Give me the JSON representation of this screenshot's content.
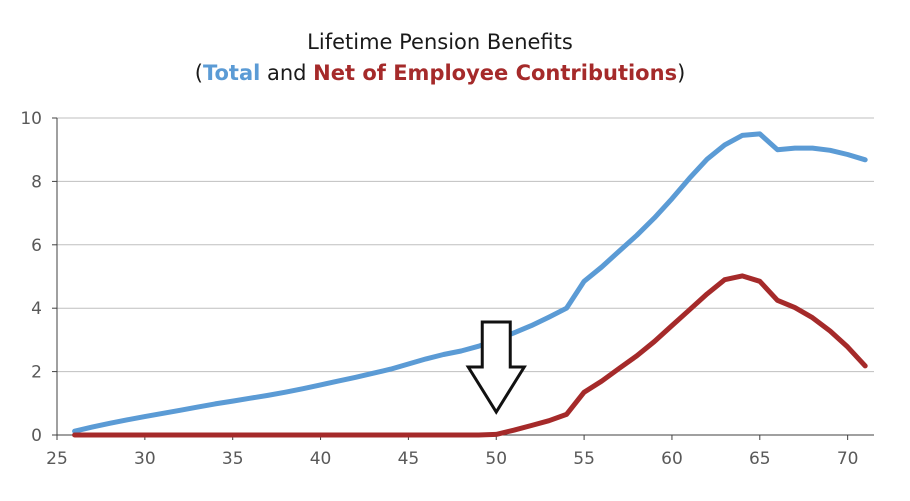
{
  "chart_data": {
    "type": "line",
    "title": "Lifetime Pension Benefits",
    "subtitle": {
      "open": "(",
      "part1": "Total",
      "middle": " and ",
      "part2": "Net of Employee Contributions",
      "close": ")"
    },
    "xlabel": "",
    "ylabel": "",
    "xlim": [
      25,
      71.5
    ],
    "ylim": [
      0,
      10
    ],
    "xticks": [
      25,
      30,
      35,
      40,
      45,
      50,
      55,
      60,
      65,
      70
    ],
    "yticks": [
      0,
      2,
      4,
      6,
      8,
      10
    ],
    "grid": "horizontal",
    "legend": "none",
    "annotation": {
      "type": "arrow",
      "points_to_x": 50,
      "description": "down-arrow-outline"
    },
    "series": [
      {
        "color": "#5B9BD5",
        "x": [
          26,
          27,
          28,
          29,
          30,
          31,
          32,
          33,
          34,
          35,
          36,
          37,
          38,
          39,
          40,
          41,
          42,
          43,
          44,
          45,
          46,
          47,
          48,
          49,
          50,
          51,
          52,
          53,
          54,
          55,
          56,
          57,
          58,
          59,
          60,
          61,
          62,
          63,
          64,
          65,
          66,
          67,
          68,
          69,
          70,
          71
        ],
        "values": [
          0.12,
          0.25,
          0.37,
          0.48,
          0.58,
          0.68,
          0.78,
          0.88,
          0.98,
          1.07,
          1.16,
          1.25,
          1.35,
          1.46,
          1.58,
          1.7,
          1.82,
          1.95,
          2.08,
          2.24,
          2.4,
          2.54,
          2.65,
          2.8,
          3.0,
          3.22,
          3.45,
          3.72,
          4.0,
          4.85,
          5.3,
          5.8,
          6.3,
          6.85,
          7.45,
          8.1,
          8.7,
          9.15,
          9.45,
          9.5,
          9.0,
          9.05,
          9.05,
          8.98,
          8.85,
          8.68
        ]
      },
      {
        "color": "#A52A2A",
        "x": [
          26,
          27,
          28,
          29,
          30,
          31,
          32,
          33,
          34,
          35,
          36,
          37,
          38,
          39,
          40,
          41,
          42,
          43,
          44,
          45,
          46,
          47,
          48,
          49,
          50,
          51,
          52,
          53,
          54,
          55,
          56,
          57,
          58,
          59,
          60,
          61,
          62,
          63,
          64,
          65,
          66,
          67,
          68,
          69,
          70,
          71
        ],
        "values": [
          0,
          0,
          0,
          0,
          0,
          0,
          0,
          0,
          0,
          0,
          0,
          0,
          0,
          0,
          0,
          0,
          0,
          0,
          0,
          0,
          0,
          0,
          0,
          0,
          0.02,
          0.15,
          0.3,
          0.45,
          0.65,
          1.35,
          1.7,
          2.1,
          2.5,
          2.95,
          3.45,
          3.95,
          4.45,
          4.9,
          5.02,
          4.85,
          4.25,
          4.02,
          3.7,
          3.28,
          2.78,
          2.18
        ]
      }
    ]
  },
  "colors": {
    "total": "#5B9BD5",
    "net": "#A52A2A",
    "grid": "#bfbfbf",
    "axis": "#404040"
  }
}
